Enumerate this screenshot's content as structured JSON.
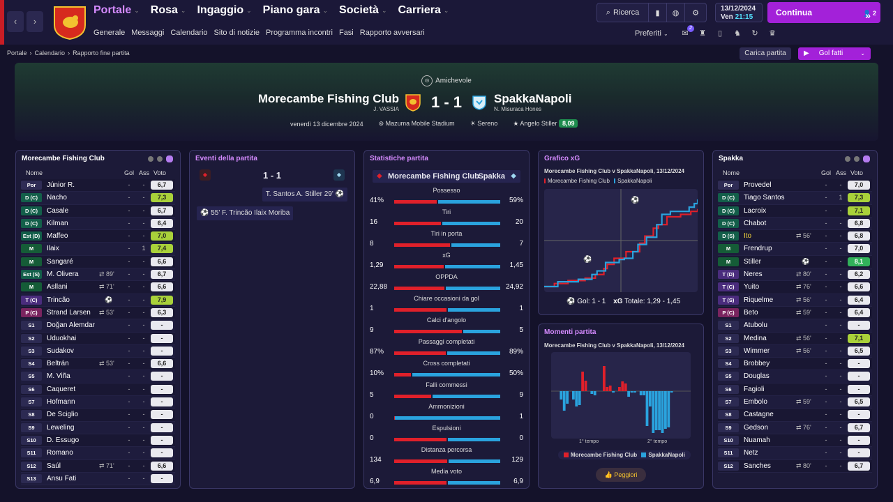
{
  "nav": {
    "back": "‹",
    "forward": "›",
    "main": [
      {
        "label": "Portale",
        "active": true
      },
      {
        "label": "Rosa"
      },
      {
        "label": "Ingaggio"
      },
      {
        "label": "Piano gara"
      },
      {
        "label": "Società"
      },
      {
        "label": "Carriera"
      }
    ],
    "sub": [
      "Generale",
      "Messaggi",
      "Calendario",
      "Sito di notizie",
      "Programma incontri",
      "Fasi",
      "Rapporto avversari"
    ]
  },
  "toolbar": {
    "search": "Ricerca",
    "date": "13/12/2024",
    "day": "Ven",
    "time": "21:15",
    "continue": "Continua",
    "notif_count": "2",
    "prefs": "Preferiti",
    "msg_badge": "2"
  },
  "breadcrumb": [
    "Portale",
    "Calendario",
    "Rapporto fine partita"
  ],
  "actions": {
    "load": "Carica partita",
    "goals": "Gol fatti"
  },
  "match": {
    "competition": "Amichevole",
    "home": "Morecambe Fishing Club",
    "home_manager": "J. VASSIA",
    "away": "SpakkaNapoli",
    "away_manager": "N. Misuraca Hones",
    "score": "1 - 1",
    "date": "venerdì 13 dicembre 2024",
    "stadium": "Mazuma Mobile Stadium",
    "weather": "Sereno",
    "potm": "Angelo Stiller",
    "potm_rating": "8,09"
  },
  "home_panel": {
    "title": "Morecambe Fishing Club",
    "col_name": "Nome",
    "col_gol": "Gol",
    "col_ass": "Ass",
    "col_voto": "Voto",
    "rows": [
      {
        "pos": "Por",
        "pc": "g",
        "name": "Júnior R.",
        "gol": "-",
        "ass": "-",
        "voto": "6,7"
      },
      {
        "pos": "D (C)",
        "pc": "d",
        "name": "Nacho",
        "gol": "-",
        "ass": "-",
        "voto": "7,3",
        "v": "hi"
      },
      {
        "pos": "D (C)",
        "pc": "d",
        "name": "Casale",
        "gol": "-",
        "ass": "-",
        "voto": "6,7"
      },
      {
        "pos": "D (C)",
        "pc": "d",
        "name": "Kilman",
        "gol": "-",
        "ass": "-",
        "voto": "6,4"
      },
      {
        "pos": "Est (D)",
        "pc": "d",
        "name": "Maffeo",
        "gol": "-",
        "ass": "-",
        "voto": "7,0",
        "v": "hi"
      },
      {
        "pos": "M",
        "pc": "m",
        "name": "Ilaix",
        "gol": "-",
        "ass": "1",
        "voto": "7,4",
        "v": "hi"
      },
      {
        "pos": "M",
        "pc": "m",
        "name": "Sangaré",
        "gol": "-",
        "ass": "-",
        "voto": "6,6"
      },
      {
        "pos": "Est (S)",
        "pc": "d",
        "name": "M. Olivera",
        "sub": "⇄ 89'",
        "gol": "-",
        "ass": "-",
        "voto": "6,7"
      },
      {
        "pos": "M",
        "pc": "m",
        "name": "Asllani",
        "sub": "⇄ 71'",
        "gol": "-",
        "ass": "-",
        "voto": "6,6"
      },
      {
        "pos": "T (C)",
        "pc": "t",
        "name": "Trincão",
        "ic": "⚽",
        "gol": "-",
        "ass": "-",
        "voto": "7,9",
        "v": "hi"
      },
      {
        "pos": "P (C)",
        "pc": "p",
        "name": "Strand Larsen",
        "sub": "⇄ 53'",
        "gol": "-",
        "ass": "-",
        "voto": "6,3"
      },
      {
        "pos": "S1",
        "pc": "s",
        "name": "Doğan Alemdar",
        "gol": "-",
        "ass": "-",
        "voto": "-"
      },
      {
        "pos": "S2",
        "pc": "s",
        "name": "Uduokhai",
        "gol": "-",
        "ass": "-",
        "voto": "-"
      },
      {
        "pos": "S3",
        "pc": "s",
        "name": "Sudakov",
        "gol": "-",
        "ass": "-",
        "voto": "-"
      },
      {
        "pos": "S4",
        "pc": "s",
        "name": "Beltrán",
        "sub": "⇄ 53'",
        "gol": "-",
        "ass": "-",
        "voto": "6,6"
      },
      {
        "pos": "S5",
        "pc": "s",
        "name": "M. Viña",
        "gol": "-",
        "ass": "-",
        "voto": "-"
      },
      {
        "pos": "S6",
        "pc": "s",
        "name": "Caqueret",
        "gol": "-",
        "ass": "-",
        "voto": "-"
      },
      {
        "pos": "S7",
        "pc": "s",
        "name": "Hofmann",
        "gol": "-",
        "ass": "-",
        "voto": "-"
      },
      {
        "pos": "S8",
        "pc": "s",
        "name": "De Sciglio",
        "gol": "-",
        "ass": "-",
        "voto": "-"
      },
      {
        "pos": "S9",
        "pc": "s",
        "name": "Leweling",
        "gol": "-",
        "ass": "-",
        "voto": "-"
      },
      {
        "pos": "S10",
        "pc": "s",
        "name": "D. Essugo",
        "gol": "-",
        "ass": "-",
        "voto": "-"
      },
      {
        "pos": "S11",
        "pc": "s",
        "name": "Romano",
        "gol": "-",
        "ass": "-",
        "voto": "-"
      },
      {
        "pos": "S12",
        "pc": "s",
        "name": "Saúl",
        "sub": "⇄ 71'",
        "gol": "-",
        "ass": "-",
        "voto": "6,6"
      },
      {
        "pos": "S13",
        "pc": "s",
        "name": "Ansu Fati",
        "gol": "-",
        "ass": "-",
        "voto": "-"
      }
    ]
  },
  "away_panel": {
    "title": "Spakka",
    "col_name": "Nome",
    "col_gol": "Gol",
    "col_ass": "Ass",
    "col_voto": "Voto",
    "rows": [
      {
        "pos": "Por",
        "pc": "g",
        "name": "Provedel",
        "gol": "-",
        "ass": "-",
        "voto": "7,0"
      },
      {
        "pos": "D (C)",
        "pc": "d",
        "name": "Tiago Santos",
        "gol": "-",
        "ass": "1",
        "voto": "7,3",
        "v": "hi"
      },
      {
        "pos": "D (C)",
        "pc": "d",
        "name": "Lacroix",
        "gol": "-",
        "ass": "-",
        "voto": "7,1",
        "v": "hi"
      },
      {
        "pos": "D (C)",
        "pc": "d",
        "name": "Chabot",
        "gol": "-",
        "ass": "-",
        "voto": "6,8"
      },
      {
        "pos": "D (S)",
        "pc": "d",
        "name": "Ito",
        "yellow": true,
        "sub": "⇄ 56'",
        "gol": "-",
        "ass": "-",
        "voto": "6,8"
      },
      {
        "pos": "M",
        "pc": "m",
        "name": "Frendrup",
        "gol": "-",
        "ass": "-",
        "voto": "7,0"
      },
      {
        "pos": "M",
        "pc": "m",
        "name": "Stiller",
        "ic": "⚽",
        "gol": "-",
        "ass": "-",
        "voto": "8,1",
        "v": "top"
      },
      {
        "pos": "T (D)",
        "pc": "t",
        "name": "Neres",
        "sub": "⇄ 80'",
        "gol": "-",
        "ass": "-",
        "voto": "6,2"
      },
      {
        "pos": "T (C)",
        "pc": "t",
        "name": "Yuito",
        "sub": "⇄ 76'",
        "gol": "-",
        "ass": "-",
        "voto": "6,6"
      },
      {
        "pos": "T (S)",
        "pc": "t",
        "name": "Riquelme",
        "sub": "⇄ 56'",
        "gol": "-",
        "ass": "-",
        "voto": "6,4"
      },
      {
        "pos": "P (C)",
        "pc": "p",
        "name": "Beto",
        "sub": "⇄ 59'",
        "gol": "-",
        "ass": "-",
        "voto": "6,4"
      },
      {
        "pos": "S1",
        "pc": "s",
        "name": "Atubolu",
        "gol": "-",
        "ass": "-",
        "voto": "-"
      },
      {
        "pos": "S2",
        "pc": "s",
        "name": "Medina",
        "sub": "⇄ 56'",
        "gol": "-",
        "ass": "-",
        "voto": "7,1",
        "v": "hi"
      },
      {
        "pos": "S3",
        "pc": "s",
        "name": "Wimmer",
        "sub": "⇄ 56'",
        "gol": "-",
        "ass": "-",
        "voto": "6,5"
      },
      {
        "pos": "S4",
        "pc": "s",
        "name": "Brobbey",
        "gol": "-",
        "ass": "-",
        "voto": "-"
      },
      {
        "pos": "S5",
        "pc": "s",
        "name": "Douglas",
        "gol": "-",
        "ass": "-",
        "voto": "-"
      },
      {
        "pos": "S6",
        "pc": "s",
        "name": "Fagioli",
        "gol": "-",
        "ass": "-",
        "voto": "-"
      },
      {
        "pos": "S7",
        "pc": "s",
        "name": "Embolo",
        "sub": "⇄ 59'",
        "gol": "-",
        "ass": "-",
        "voto": "6,5"
      },
      {
        "pos": "S8",
        "pc": "s",
        "name": "Castagne",
        "gol": "-",
        "ass": "-",
        "voto": "-"
      },
      {
        "pos": "S9",
        "pc": "s",
        "name": "Gedson",
        "sub": "⇄ 76'",
        "gol": "-",
        "ass": "-",
        "voto": "6,7"
      },
      {
        "pos": "S10",
        "pc": "s",
        "name": "Nuamah",
        "gol": "-",
        "ass": "-",
        "voto": "-"
      },
      {
        "pos": "S11",
        "pc": "s",
        "name": "Netz",
        "gol": "-",
        "ass": "-",
        "voto": "-"
      },
      {
        "pos": "S12",
        "pc": "s",
        "name": "Sanches",
        "sub": "⇄ 80'",
        "gol": "-",
        "ass": "-",
        "voto": "6,7"
      }
    ]
  },
  "events": {
    "title": "Eventi della partita",
    "score": "1 - 1",
    "items": [
      {
        "side": "away",
        "text": "T. Santos  A. Stiller 29'"
      },
      {
        "side": "home",
        "text": "55'  F. Trincão  Ilaix Moriba"
      }
    ]
  },
  "stats": {
    "title": "Statistiche partita",
    "home": "Morecambe Fishing Club",
    "away": "Spakka",
    "rows": [
      {
        "label": "Possesso",
        "h": "41%",
        "a": "59%",
        "hv": 41,
        "av": 59
      },
      {
        "label": "Tiri",
        "h": "16",
        "a": "20",
        "hv": 16,
        "av": 20
      },
      {
        "label": "Tiri in porta",
        "h": "8",
        "a": "7",
        "hv": 8,
        "av": 7
      },
      {
        "label": "xG",
        "h": "1,29",
        "a": "1,45",
        "hv": 1.29,
        "av": 1.45
      },
      {
        "label": "OPPDA",
        "h": "22,88",
        "a": "24,92",
        "hv": 22.88,
        "av": 24.92
      },
      {
        "label": "Chiare occasioni da gol",
        "h": "1",
        "a": "1",
        "hv": 1,
        "av": 1
      },
      {
        "label": "Calci d'angolo",
        "h": "9",
        "a": "5",
        "hv": 9,
        "av": 5
      },
      {
        "label": "Passaggi completati",
        "h": "87%",
        "a": "89%",
        "hv": 87,
        "av": 89
      },
      {
        "label": "Cross completati",
        "h": "10%",
        "a": "50%",
        "hv": 10,
        "av": 50
      },
      {
        "label": "Falli commessi",
        "h": "5",
        "a": "9",
        "hv": 5,
        "av": 9
      },
      {
        "label": "Ammonizioni",
        "h": "0",
        "a": "1",
        "hv": 0,
        "av": 1
      },
      {
        "label": "Espulsioni",
        "h": "0",
        "a": "0",
        "hv": 0,
        "av": 0
      },
      {
        "label": "Distanza percorsa",
        "h": "134",
        "a": "129",
        "hv": 134,
        "av": 129
      },
      {
        "label": "Media voto",
        "h": "6,9",
        "a": "6,9",
        "hv": 6.9,
        "av": 6.9
      }
    ]
  },
  "xg": {
    "title": "Grafico xG",
    "subtitle": "Morecambe Fishing Club v SpakkaNapoli, 13/12/2024",
    "legend_home": "Morecambe Fishing Club",
    "legend_away": "SpakkaNapoli",
    "footer_goals": "Gol: 1 - 1",
    "footer_xg_label": "xG",
    "footer_xg": "Totale: 1,29 - 1,45"
  },
  "moments": {
    "title": "Momenti partita",
    "subtitle": "Morecambe Fishing Club v SpakkaNapoli, 13/12/2024",
    "half1": "1° tempo",
    "half2": "2° tempo",
    "legend_home": "Morecambe Fishing Club",
    "legend_away": "SpakkaNapoli",
    "button": "Peggiori"
  },
  "colors": {
    "home": "#e0202a",
    "away": "#2aa3de",
    "accent": "#a321d9"
  },
  "chart_data": [
    {
      "type": "line",
      "title": "Grafico xG",
      "series": [
        {
          "name": "Morecambe Fishing Club",
          "x": [
            0,
            6,
            14,
            24,
            30,
            35,
            37,
            41,
            48,
            56,
            59,
            64,
            67,
            72,
            80,
            86,
            90
          ],
          "y": [
            0,
            0.05,
            0.1,
            0.14,
            0.2,
            0.3,
            0.37,
            0.47,
            0.58,
            0.72,
            0.84,
            0.97,
            1.03,
            1.16,
            1.2,
            1.25,
            1.29
          ]
        },
        {
          "name": "SpakkaNapoli",
          "x": [
            0,
            8,
            20,
            28,
            31,
            36,
            44,
            47,
            52,
            55,
            60,
            66,
            69,
            74,
            85,
            88,
            90
          ],
          "y": [
            0,
            0.08,
            0.12,
            0.2,
            0.26,
            0.4,
            0.45,
            0.47,
            0.58,
            0.7,
            0.82,
            1.03,
            1.2,
            1.25,
            1.32,
            1.38,
            1.45
          ]
        }
      ],
      "xlim": [
        0,
        90
      ]
    },
    {
      "type": "bar",
      "title": "Momenti partita",
      "series": [
        {
          "name": "Morecambe Fishing Club",
          "values": [
            0,
            0,
            0,
            0,
            0,
            0,
            0,
            0,
            0.28,
            0.15,
            0,
            0,
            0,
            0,
            0,
            0.36,
            0.06,
            0.08,
            0,
            0,
            0.06,
            0.14,
            0.11,
            0,
            0,
            0,
            0,
            0,
            0,
            0,
            0,
            0,
            0,
            0,
            0,
            0,
            0,
            0,
            0,
            0,
            0,
            0
          ]
        },
        {
          "name": "SpakkaNapoli",
          "values": [
            0,
            0.12,
            0.28,
            0.18,
            0,
            0.12,
            0.22,
            0.2,
            0,
            0,
            0,
            0.04,
            0.06,
            0,
            0,
            0,
            0,
            0,
            0.02,
            0,
            0,
            0,
            0,
            0.08,
            0.02,
            0.02,
            0,
            0.06,
            0.06,
            0.5,
            0.22,
            0.6,
            0.56,
            0.56,
            0.6,
            0.54,
            0.52,
            0.02,
            0,
            0,
            0,
            0
          ]
        }
      ]
    }
  ]
}
